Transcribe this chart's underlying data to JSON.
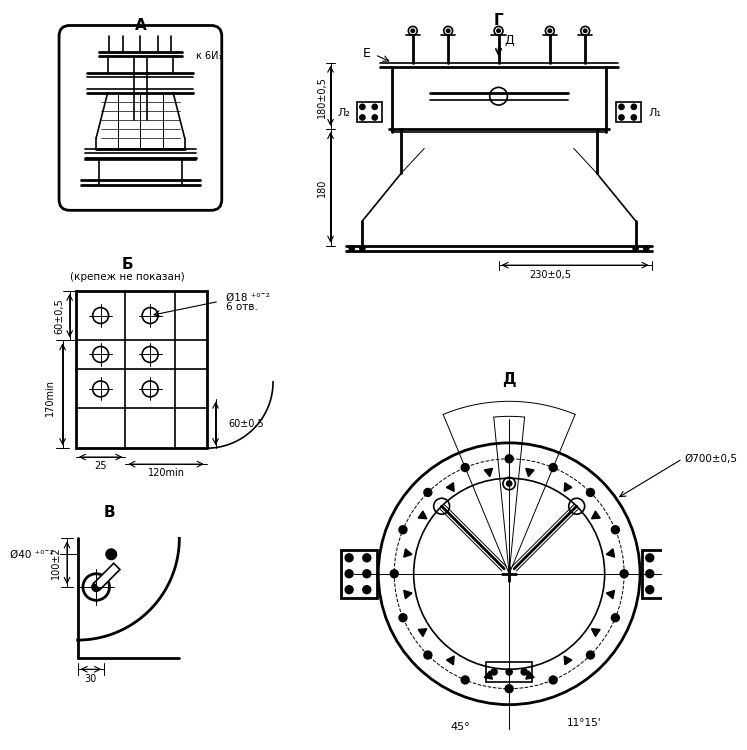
{
  "bg_color": "#ffffff",
  "line_color": "#000000",
  "title_A": "А",
  "title_B": "Б",
  "title_B_sub": "(крепеж не показан)",
  "title_V": "В",
  "title_G": "Г",
  "title_D": "Д",
  "label_k6I1": "к 6И₁",
  "label_E": "Е",
  "label_L1": "Л₁",
  "label_L2": "Л₂",
  "label_180_05": "180±0,5",
  "label_180": "180",
  "label_230_05": "230±0,5",
  "label_d18_line1": "Ø18 ⁺⁰ˉ²",
  "label_6otv": "6 отв.",
  "label_60_05_top": "60±0,5",
  "label_170min": "170min",
  "label_25": "25",
  "label_60_05_bot": "60±0,5",
  "label_120min": "120min",
  "label_d40": "Ø40 ⁺⁰ˉ²",
  "label_100_2": "100±2",
  "label_30": "30",
  "label_d700": "Ø700±0,5",
  "label_45": "45°",
  "label_1115": "11°15'",
  "label_D_arrow": "Д"
}
